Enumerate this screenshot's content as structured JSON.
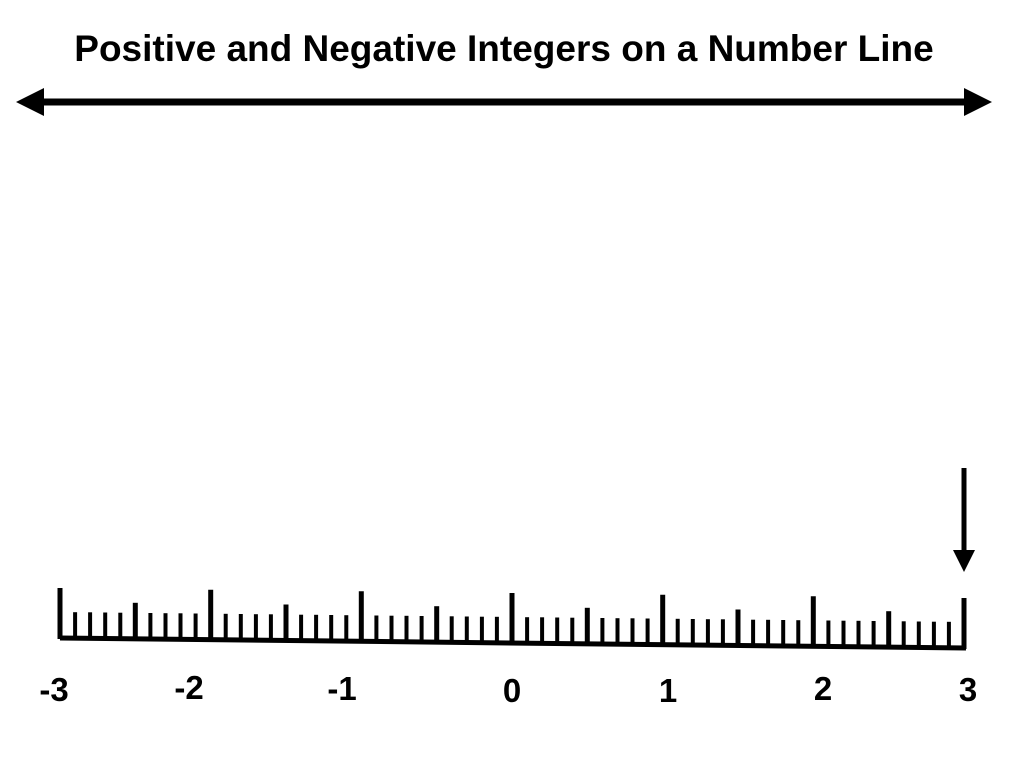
{
  "title": "Positive and Negative Integers on a Number Line",
  "colors": {
    "ink": "#000000",
    "background": "#ffffff"
  },
  "number_line": {
    "min": -3,
    "max": 3,
    "labels": [
      "-3",
      "-2",
      "-1",
      "0",
      "1",
      "2",
      "3"
    ],
    "tick_spacing": 0.1,
    "arrow_marks_value": 3
  },
  "top_arrow": {
    "direction": "both"
  }
}
